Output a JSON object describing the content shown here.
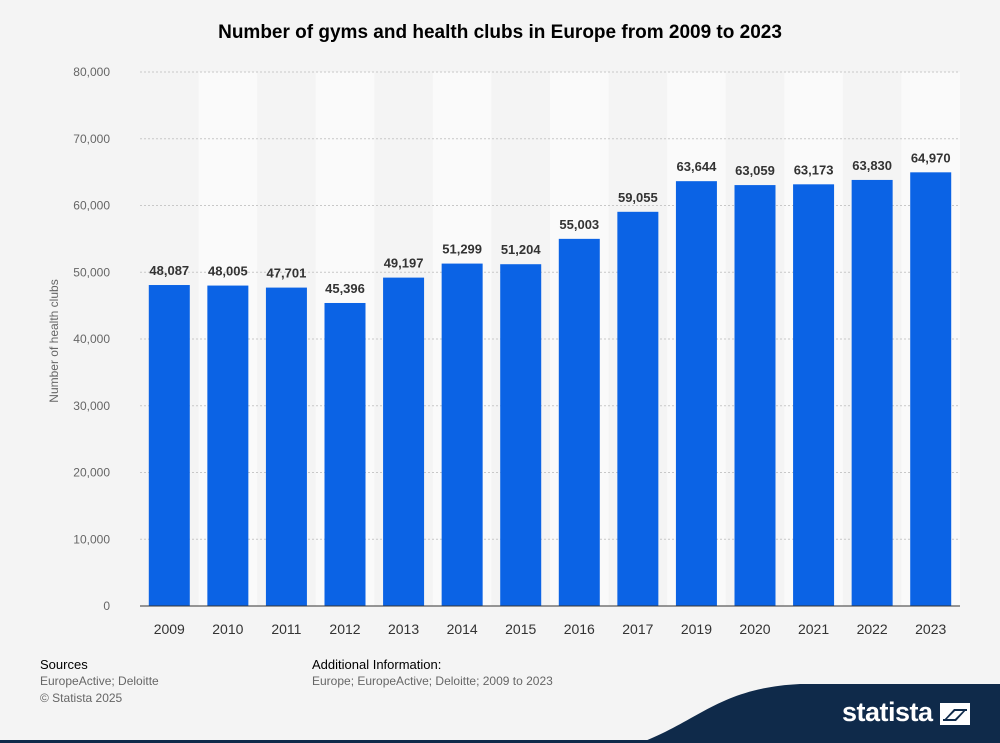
{
  "chart_data": {
    "type": "bar",
    "title": "Number of gyms and health clubs in Europe from 2009 to 2023",
    "ylabel": "Number of health clubs",
    "xlabel": "",
    "ylim": [
      0,
      80000
    ],
    "yticks": [
      "0",
      "10,000",
      "20,000",
      "30,000",
      "40,000",
      "50,000",
      "60,000",
      "70,000",
      "80,000"
    ],
    "categories": [
      "2009",
      "2010",
      "2011",
      "2012",
      "2013",
      "2014",
      "2015",
      "2016",
      "2017",
      "2019",
      "2020",
      "2021",
      "2022",
      "2023"
    ],
    "values": [
      48087,
      48005,
      47701,
      45396,
      49197,
      51299,
      51204,
      55003,
      59055,
      63644,
      63059,
      63173,
      63830,
      64970
    ],
    "value_labels": [
      "48,087",
      "48,005",
      "47,701",
      "45,396",
      "49,197",
      "51,299",
      "51,204",
      "55,003",
      "59,055",
      "63,644",
      "63,059",
      "63,173",
      "63,830",
      "64,970"
    ],
    "bar_color": "#0b63e5",
    "grid": true
  },
  "footer": {
    "sources_heading": "Sources",
    "sources_line1": "EuropeActive; Deloitte",
    "sources_line2": "© Statista 2025",
    "additional_heading": "Additional Information:",
    "additional_text": "Europe; EuropeActive; Deloitte; 2009 to 2023"
  },
  "brand": {
    "name": "statista",
    "icon": "statista-logo-icon",
    "color": "#0f2a4a"
  }
}
